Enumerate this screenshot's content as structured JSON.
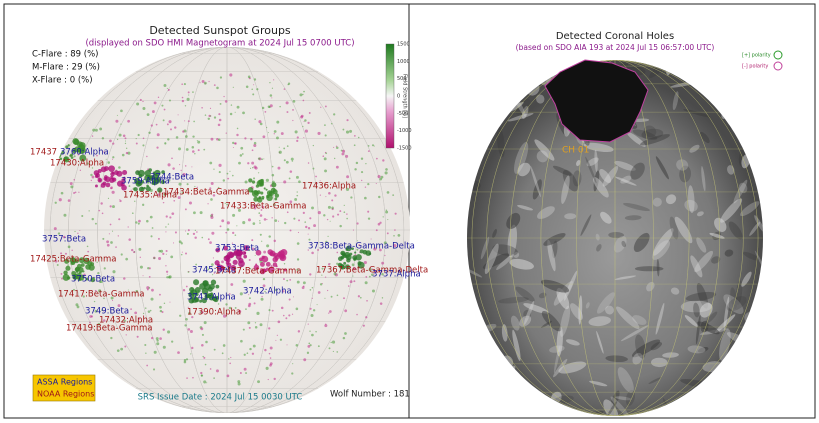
{
  "left_panel": {
    "title": "Detected Sunspot Groups",
    "subtitle": "(displayed on SDO HMI Magnetogram at 2024 Jul 15 0700 UTC)",
    "flares": [
      "C-Flare : 89 (%)",
      "M-Flare : 29 (%)",
      "X-Flare :  0 (%)"
    ],
    "colorbar_label": "Field Strength [G]",
    "colorbar_ticks": [
      "1500",
      "1000",
      "500",
      "0",
      "-500",
      "-1000",
      "-1500"
    ],
    "legend": [
      "ASSA Regions",
      "NOAA Regions"
    ],
    "srs_issue": "SRS Issue Date : 2024 Jul 15 0030 UTC",
    "wolf_number": "Wolf Number : 181",
    "regions": [
      "17437",
      "3760:Alpha",
      "17430:Alpha",
      "3759:Alpha",
      "3744:Beta",
      "17435:Alpha",
      "17434:Beta-Gamma",
      "17433:Beta-Gamma",
      "17436:Alpha",
      "3757:Beta",
      "17425:Beta-Gamma",
      "3750:Beta",
      "17417:Beta-Gamma",
      "3749:Beta",
      "17432:Alpha",
      "17419:Beta-Gamma",
      "3753:Beta",
      "3745:Beta",
      "17437:Beta-Gamma",
      "3741:Alpha",
      "3742:Alpha",
      "17390:Alpha",
      "3738:Beta-Gamma-Delta",
      "17367:Beta-Gamma-Delta",
      "3737:Alpha"
    ]
  },
  "right_panel": {
    "title": "Detected Coronal Holes",
    "subtitle": "(based on SDO AIA 193 at 2024 Jul 15 06:57:00 UTC)",
    "legend": [
      "[+] polarity",
      "[-] polarity"
    ],
    "hole_label": "CH 01"
  }
}
